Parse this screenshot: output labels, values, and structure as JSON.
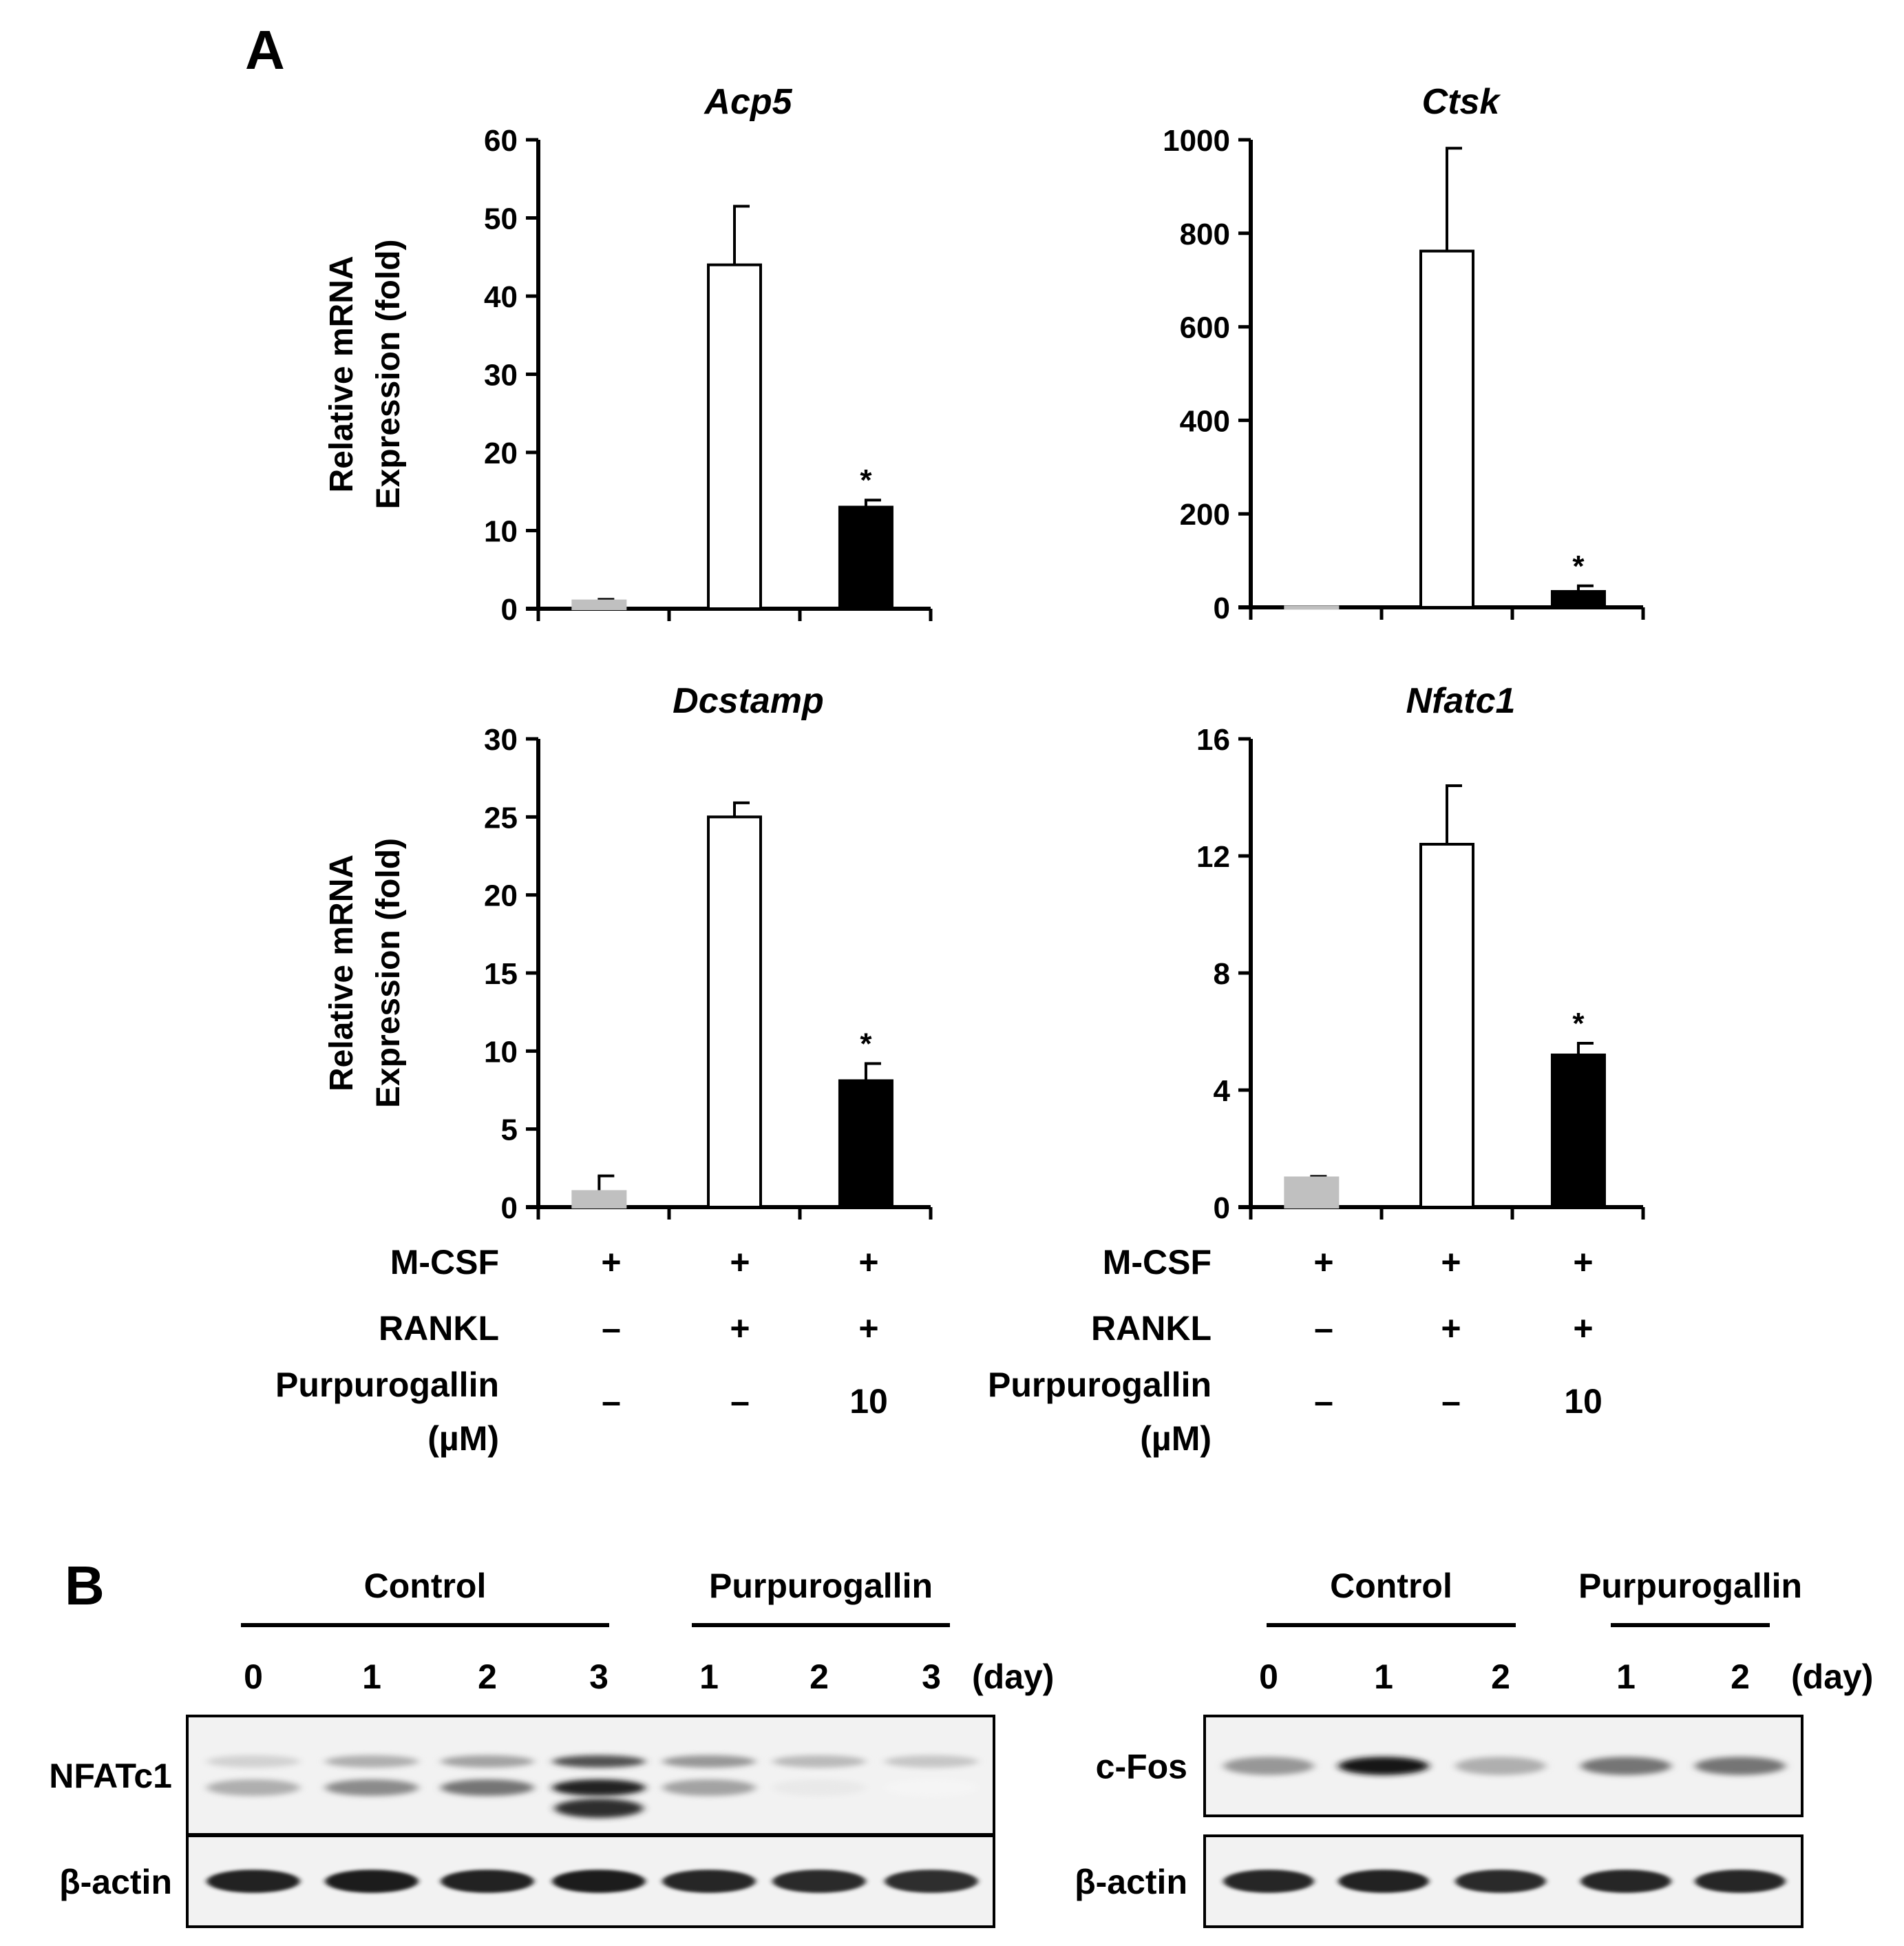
{
  "panel_a": {
    "letter": "A"
  },
  "panel_b": {
    "letter": "B"
  },
  "chart_data": [
    {
      "type": "bar",
      "title": "Acp5",
      "ylabel": "Relative mRNA Expression (fold)",
      "ylim": [
        0,
        60
      ],
      "yticks": [
        0,
        10,
        20,
        30,
        40,
        50,
        60
      ],
      "values": [
        1,
        44,
        13
      ],
      "errors": [
        0.2,
        7.5,
        0.9
      ],
      "significance": [
        "",
        "",
        "*"
      ],
      "colors": [
        "#c0c0c0",
        "#ffffff",
        "#000000"
      ]
    },
    {
      "type": "bar",
      "title": "Ctsk",
      "ylabel": "",
      "ylim": [
        0,
        1000
      ],
      "yticks": [
        0,
        200,
        400,
        600,
        800,
        1000
      ],
      "values": [
        1,
        762,
        34
      ],
      "errors": [
        0.5,
        220,
        12
      ],
      "significance": [
        "",
        "",
        "*"
      ],
      "colors": [
        "#c0c0c0",
        "#ffffff",
        "#000000"
      ]
    },
    {
      "type": "bar",
      "title": "Dcstamp",
      "ylabel": "Relative mRNA Expression (fold)",
      "ylim": [
        0,
        30
      ],
      "yticks": [
        0,
        5,
        10,
        15,
        20,
        25,
        30
      ],
      "values": [
        1,
        25,
        8.1
      ],
      "errors": [
        1,
        0.9,
        1.1
      ],
      "significance": [
        "",
        "",
        "*"
      ],
      "colors": [
        "#c0c0c0",
        "#ffffff",
        "#000000"
      ]
    },
    {
      "type": "bar",
      "title": "Nfatc1",
      "ylabel": "",
      "ylim": [
        0,
        16
      ],
      "yticks": [
        0,
        4,
        8,
        12,
        16
      ],
      "values": [
        1,
        12.4,
        5.2
      ],
      "errors": [
        0.05,
        2.0,
        0.4
      ],
      "significance": [
        "",
        "",
        "*"
      ],
      "colors": [
        "#c0c0c0",
        "#ffffff",
        "#000000"
      ]
    }
  ],
  "conditions": {
    "rows": [
      {
        "label": [
          "M-CSF"
        ],
        "values": [
          "+",
          "+",
          "+"
        ]
      },
      {
        "label": [
          "RANKL"
        ],
        "values": [
          "–",
          "+",
          "+"
        ]
      },
      {
        "label": [
          "Purpurogallin",
          "(µM)"
        ],
        "values": [
          "–",
          "–",
          "10"
        ]
      }
    ]
  },
  "blots": [
    {
      "groups": [
        {
          "label": "Control",
          "lanes": [
            0,
            1,
            2,
            3
          ]
        },
        {
          "label": "Purpurogallin",
          "lanes": [
            4,
            5,
            6
          ]
        }
      ],
      "lane_labels": [
        "0",
        "1",
        "2",
        "3",
        "1",
        "2",
        "3"
      ],
      "unit": "(day)",
      "proteins": [
        {
          "name": "NFATc1",
          "band_intensity": [
            0.35,
            0.5,
            0.62,
            0.95,
            0.6,
            0.3,
            0.25
          ]
        },
        {
          "name": "β-actin",
          "band_intensity": [
            0.9,
            0.92,
            0.9,
            0.92,
            0.88,
            0.86,
            0.85
          ]
        }
      ]
    },
    {
      "groups": [
        {
          "label": "Control",
          "lanes": [
            0,
            1,
            2
          ]
        },
        {
          "label": "Purpurogallin",
          "lanes": [
            3,
            4
          ]
        }
      ],
      "lane_labels": [
        "0",
        "1",
        "2",
        "1",
        "2"
      ],
      "unit": "(day)",
      "proteins": [
        {
          "name": "c-Fos",
          "band_intensity": [
            0.4,
            0.95,
            0.3,
            0.55,
            0.55
          ]
        },
        {
          "name": "β-actin",
          "band_intensity": [
            0.88,
            0.9,
            0.86,
            0.88,
            0.88
          ]
        }
      ]
    }
  ]
}
